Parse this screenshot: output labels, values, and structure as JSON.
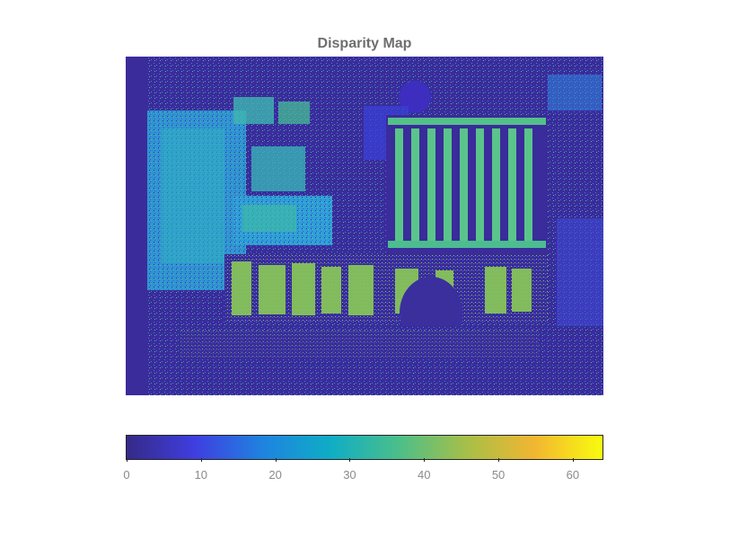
{
  "figure": {
    "title": "Disparity Map"
  },
  "image": {
    "description_name": "disparity-image",
    "colormap": "parula",
    "background_color": "#3a2c9a"
  },
  "colorbar": {
    "range": [
      0,
      64
    ],
    "tick_values": [
      0,
      10,
      20,
      30,
      40,
      50,
      60
    ],
    "tick_labels": [
      "0",
      "10",
      "20",
      "30",
      "40",
      "50",
      "60"
    ],
    "colors": [
      "#352a87",
      "#3f3ee0",
      "#1f83e0",
      "#0fadc6",
      "#4bbf8a",
      "#a6bf48",
      "#f2b631",
      "#f9fb0e"
    ]
  }
}
